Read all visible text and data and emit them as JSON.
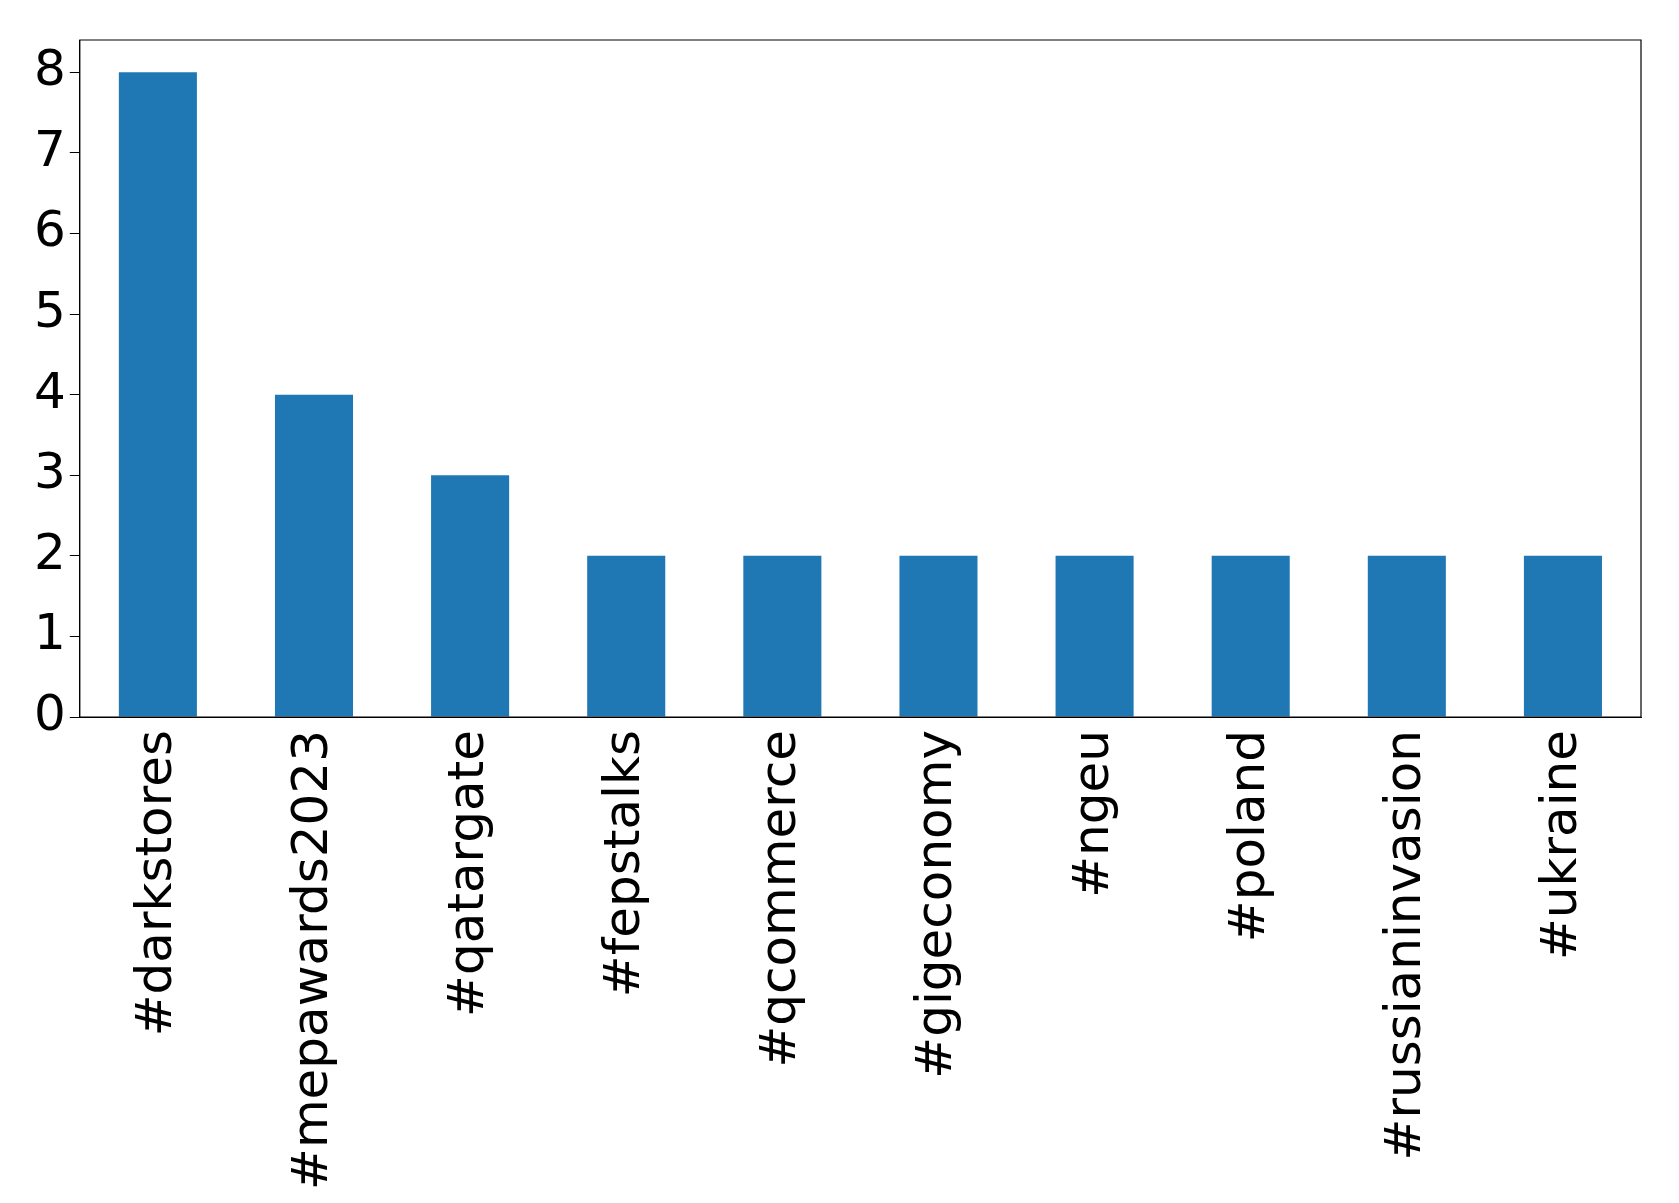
{
  "chart_data": {
    "type": "bar",
    "categories": [
      "#darkstores",
      "#mepawards2023",
      "#qatargate",
      "#fepstalks",
      "#qcommerce",
      "#gigeconomy",
      "#ngeu",
      "#poland",
      "#russianinvasion",
      "#ukraine"
    ],
    "values": [
      8,
      4,
      3,
      2,
      2,
      2,
      2,
      2,
      2,
      2
    ],
    "color": "#1f77b4",
    "ylim": [
      0,
      8.4
    ],
    "yticks": [
      0,
      1,
      2,
      3,
      4,
      5,
      6,
      7,
      8
    ],
    "grid": false,
    "legend": false
  }
}
